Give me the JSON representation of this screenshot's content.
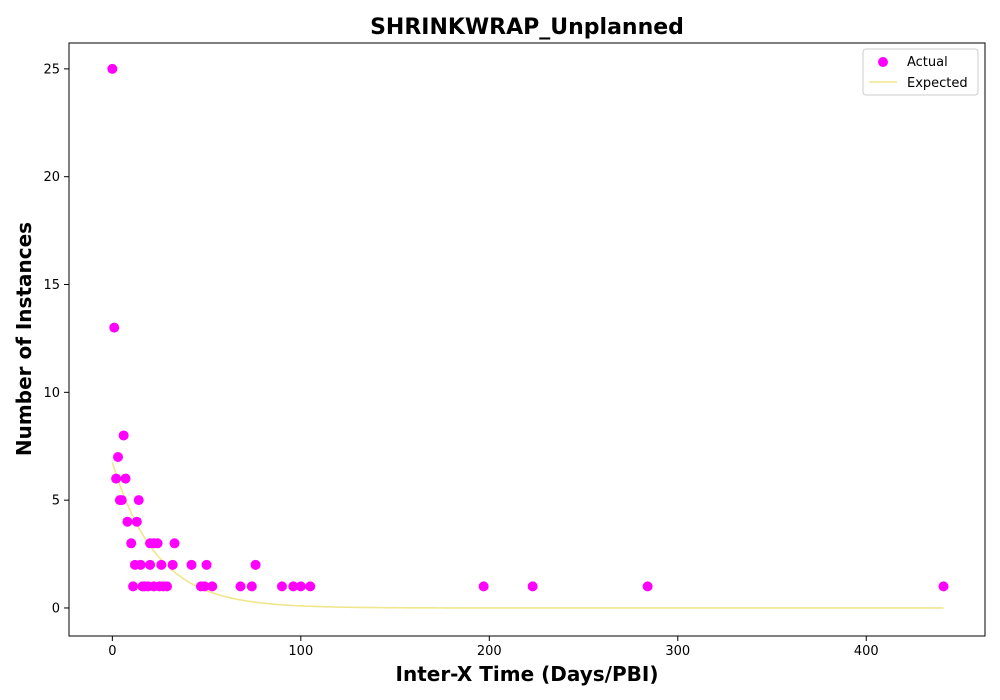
{
  "chart_data": {
    "type": "scatter",
    "title": "SHRINKWRAP_Unplanned",
    "xlabel": "Inter-X Time (Days/PBI)",
    "ylabel": "Number of Instances",
    "xlim": [
      -23,
      463
    ],
    "ylim": [
      -1.3,
      26.2
    ],
    "xticks": [
      0,
      100,
      200,
      300,
      400
    ],
    "yticks": [
      0,
      5,
      10,
      15,
      20,
      25
    ],
    "grid": false,
    "legend_position": "top-right",
    "series": [
      {
        "name": "Actual",
        "kind": "scatter",
        "color": "#ff00ff",
        "points": [
          [
            0,
            25
          ],
          [
            1,
            13
          ],
          [
            2,
            6
          ],
          [
            3,
            7
          ],
          [
            4,
            5
          ],
          [
            5,
            5
          ],
          [
            6,
            8
          ],
          [
            7,
            6
          ],
          [
            8,
            4
          ],
          [
            10,
            3
          ],
          [
            11,
            1
          ],
          [
            12,
            2
          ],
          [
            13,
            4
          ],
          [
            14,
            5
          ],
          [
            15,
            2
          ],
          [
            16,
            1
          ],
          [
            17,
            1
          ],
          [
            19,
            1
          ],
          [
            20,
            3
          ],
          [
            20,
            2
          ],
          [
            22,
            1
          ],
          [
            22,
            3
          ],
          [
            24,
            3
          ],
          [
            25,
            1
          ],
          [
            26,
            2
          ],
          [
            27,
            1
          ],
          [
            29,
            1
          ],
          [
            32,
            2
          ],
          [
            33,
            3
          ],
          [
            42,
            2
          ],
          [
            47,
            1
          ],
          [
            49,
            1
          ],
          [
            50,
            2
          ],
          [
            53,
            1
          ],
          [
            68,
            1
          ],
          [
            74,
            1
          ],
          [
            76,
            2
          ],
          [
            90,
            1
          ],
          [
            96,
            1
          ],
          [
            100,
            1
          ],
          [
            105,
            1
          ],
          [
            197,
            1
          ],
          [
            223,
            1
          ],
          [
            284,
            1
          ],
          [
            441,
            1
          ]
        ]
      },
      {
        "name": "Expected",
        "kind": "line",
        "color": "#f0e68c",
        "function": "6.75 * exp(-x / 23.5)",
        "x_range": [
          0,
          441
        ]
      }
    ]
  }
}
